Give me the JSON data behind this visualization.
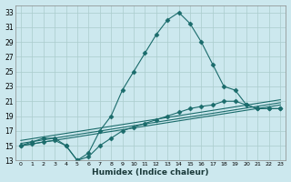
{
  "xlabel": "Humidex (Indice chaleur)",
  "bg_color": "#cce8ee",
  "grid_color": "#aacccc",
  "line_color": "#1a6b6b",
  "ylim": [
    13,
    34
  ],
  "xlim": [
    -0.5,
    23.5
  ],
  "yticks": [
    13,
    15,
    17,
    19,
    21,
    23,
    25,
    27,
    29,
    31,
    33
  ],
  "xticks": [
    0,
    1,
    2,
    3,
    4,
    5,
    6,
    7,
    8,
    9,
    10,
    11,
    12,
    13,
    14,
    15,
    16,
    17,
    18,
    19,
    20,
    21,
    22,
    23
  ],
  "lines": [
    {
      "x": [
        0,
        1,
        2,
        3,
        4,
        5,
        6,
        7,
        8,
        9,
        10,
        11,
        12,
        13,
        14,
        15,
        16,
        17,
        18,
        19,
        20,
        21,
        22,
        23
      ],
      "y": [
        15,
        15.5,
        16,
        16,
        15,
        13,
        14,
        17,
        19,
        22.5,
        25,
        27.5,
        30,
        32,
        33,
        31.5,
        29,
        26,
        23,
        22.5,
        20.5,
        20,
        20,
        20
      ],
      "marker": true
    },
    {
      "x": [
        0,
        1,
        2,
        3,
        4,
        5,
        6,
        7,
        8,
        9,
        10,
        11,
        12,
        13,
        14,
        15,
        16,
        17,
        18,
        19,
        20,
        21,
        22,
        23
      ],
      "y": [
        15,
        15.2,
        15.5,
        15.7,
        15,
        13,
        13.5,
        15,
        16,
        17,
        17.5,
        18,
        18.5,
        19,
        19.5,
        20,
        20.3,
        20.5,
        21,
        21,
        20.5,
        20,
        20,
        20
      ],
      "marker": true
    },
    {
      "x": [
        0,
        23
      ],
      "y": [
        15.0,
        20.5
      ],
      "marker": false
    },
    {
      "x": [
        0,
        23
      ],
      "y": [
        15.3,
        20.8
      ],
      "marker": false
    },
    {
      "x": [
        0,
        23
      ],
      "y": [
        15.7,
        21.2
      ],
      "marker": false
    }
  ]
}
